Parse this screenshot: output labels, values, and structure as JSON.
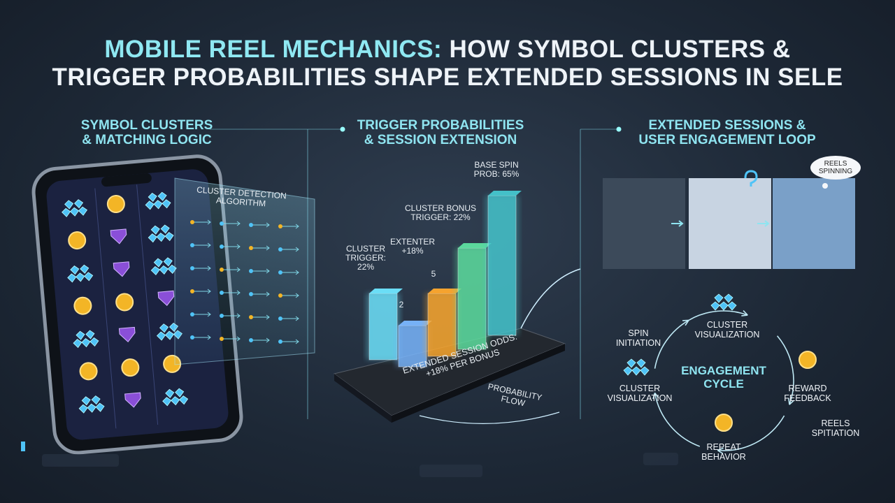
{
  "header": {
    "title_highlight": "MOBILE REEL MECHANICS:",
    "title_line1_rest": "HOW SYMBOL CLUSTERS &",
    "title_line2": "TRIGGER PROBABILITIES SHAPE EXTENDED SESSIONS IN SELE"
  },
  "sections": [
    {
      "title_line1": "SYMBOL CLUSTERS",
      "title_line2": "& MATCHING LOGIC",
      "panel_label_line1": "CLUSTER DETECTION",
      "panel_label_line2": "ALGORITHM"
    },
    {
      "title_line1": "TRIGGER PROBABILITIES",
      "title_line2": "& SESSION EXTENSION",
      "labels": [
        {
          "line1": "CLUSTER",
          "line2": "TRIGGER:",
          "line3": "22%"
        },
        {
          "line1": "EXTENTER",
          "line2": "+18%"
        },
        {
          "line1": "CLUSTER BONUS",
          "line2": "TRIGGER: 22%"
        },
        {
          "line1": "BASE SPIN",
          "line2": "PROB: 65%"
        }
      ],
      "markers": [
        "2",
        "5"
      ],
      "platform_line1": "EXTENDED SESSION ODDS:",
      "platform_line2": "+18% PER BONUS",
      "flow_line1": "PROBABILITY",
      "flow_line2": "FLOW"
    },
    {
      "title_line1": "EXTENDED SESSIONS &",
      "title_line2": "USER ENGAGEMENT LOOP",
      "bubble_line1": "REELS",
      "bubble_line2": "SPINNING",
      "cycle_center_line1": "ENGAGEMENT",
      "cycle_center_line2": "CYCLE",
      "cycle_nodes": [
        {
          "line1": "CLUSTER",
          "line2": "VISUALIZATION"
        },
        {
          "line1": "REWARD",
          "line2": "FEEDBACK"
        },
        {
          "line1": "REPEAT",
          "line2": "BEHAVIOR"
        },
        {
          "line1": "CLUSTER",
          "line2": "VISUALIZATION"
        },
        {
          "line1": "SPIN",
          "line2": "INITIATION"
        }
      ],
      "side_note_line1": "REELS",
      "side_note_line2": "SPITIATION"
    }
  ]
}
